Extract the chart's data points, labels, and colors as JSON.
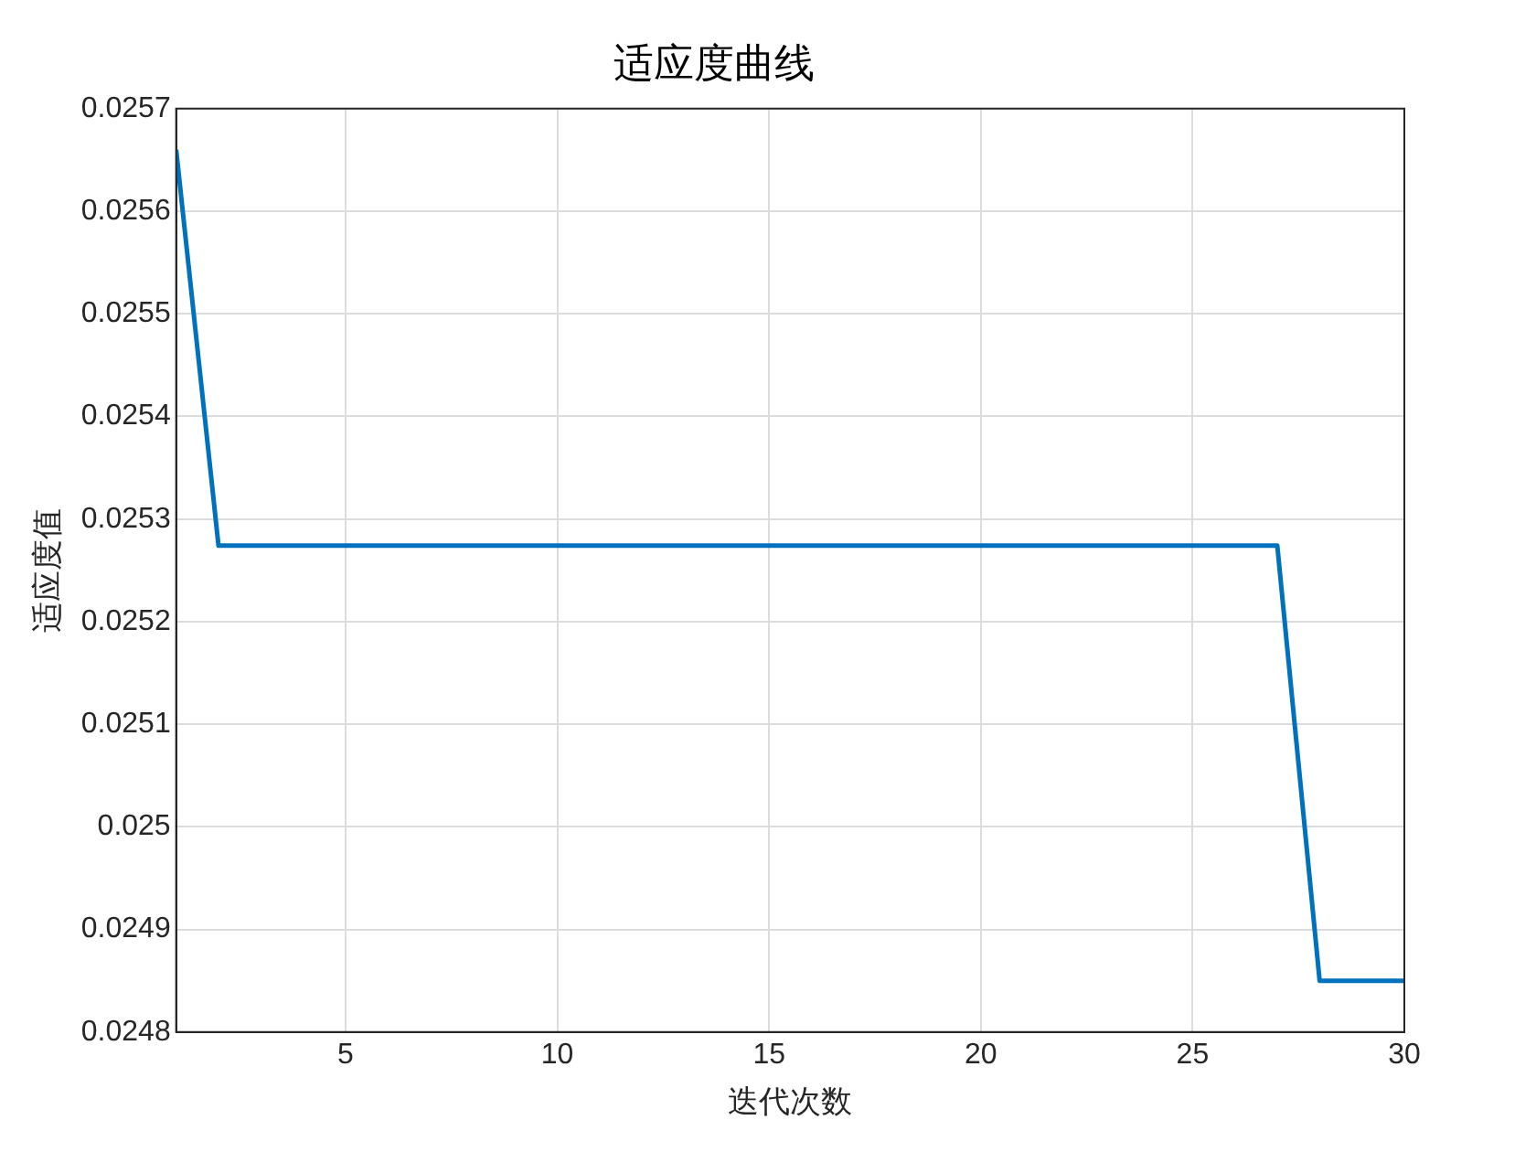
{
  "chart_data": {
    "type": "line",
    "title": "适应度曲线",
    "xlabel": "迭代次数",
    "ylabel": "适应度值",
    "x": [
      1,
      2,
      3,
      4,
      5,
      6,
      7,
      8,
      9,
      10,
      11,
      12,
      13,
      14,
      15,
      16,
      17,
      18,
      19,
      20,
      21,
      22,
      23,
      24,
      25,
      26,
      27,
      28,
      29,
      30
    ],
    "series": [
      {
        "color": "#0072bd",
        "values": [
          0.02566,
          0.025274,
          0.025274,
          0.025274,
          0.025274,
          0.025274,
          0.025274,
          0.025274,
          0.025274,
          0.025274,
          0.025274,
          0.025274,
          0.025274,
          0.025274,
          0.025274,
          0.025274,
          0.025274,
          0.025274,
          0.025274,
          0.025274,
          0.025274,
          0.025274,
          0.025274,
          0.025274,
          0.025274,
          0.025274,
          0.025274,
          0.02485,
          0.02485,
          0.02485
        ]
      }
    ],
    "xlim": [
      1,
      30
    ],
    "xticks": [
      5,
      10,
      15,
      20,
      25,
      30
    ],
    "ylim": [
      0.0248,
      0.0257
    ],
    "yticks": [
      0.0248,
      0.0249,
      0.025,
      0.0251,
      0.0252,
      0.0253,
      0.0254,
      0.0255,
      0.0256,
      0.0257
    ],
    "grid": true,
    "legend": false,
    "marker": "none",
    "line_style": "solid"
  }
}
